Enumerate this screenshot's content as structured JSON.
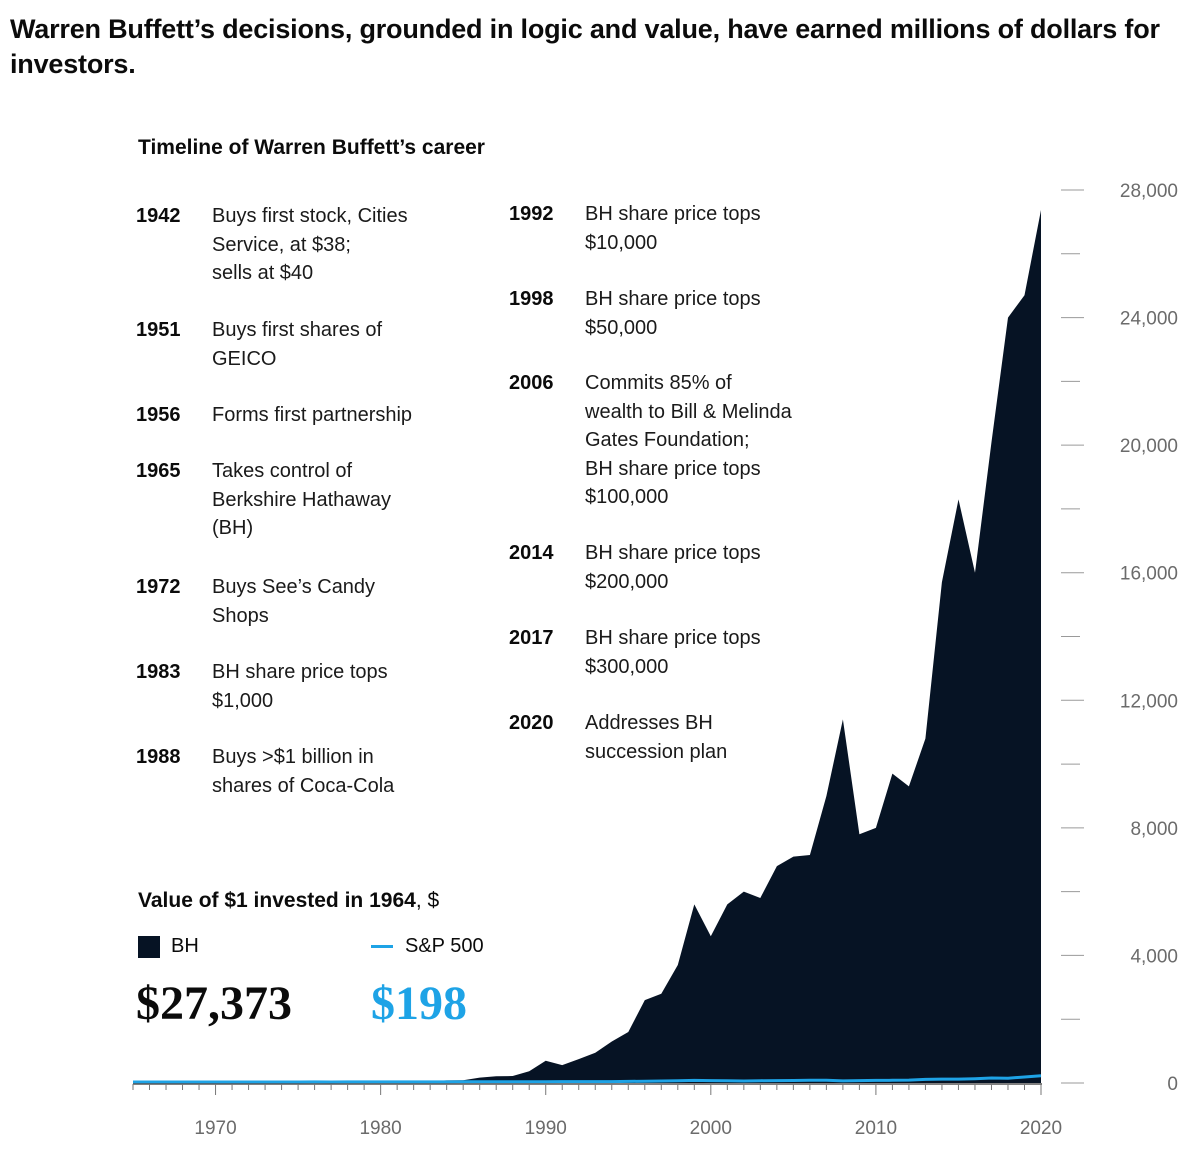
{
  "headline": "Warren Buffett’s decisions, grounded in logic and value, have earned millions of dollars for investors.",
  "timeline": {
    "title": "Timeline of Warren Buffett’s career",
    "left_events": [
      {
        "year": "1942",
        "text": "Buys first stock, Cities\nService, at $38;\nsells at $40"
      },
      {
        "year": "1951",
        "text": "Buys first shares of\nGEICO"
      },
      {
        "year": "1956",
        "text": "Forms first partnership"
      },
      {
        "year": "1965",
        "text": "Takes control of\nBerkshire Hathaway\n(BH)"
      },
      {
        "year": "1972",
        "text": "Buys See’s Candy\nShops"
      },
      {
        "year": "1983",
        "text": "BH share price tops\n$1,000"
      },
      {
        "year": "1988",
        "text": "Buys >$1 billion in\nshares of Coca-Cola"
      }
    ],
    "right_events": [
      {
        "year": "1992",
        "text": "BH share price tops\n$10,000"
      },
      {
        "year": "1998",
        "text": "BH share price tops\n$50,000"
      },
      {
        "year": "2006",
        "text": "Commits 85% of\nwealth to Bill & Melinda\nGates Foundation;\nBH share price tops\n$100,000"
      },
      {
        "year": "2014",
        "text": "BH share price tops\n$200,000"
      },
      {
        "year": "2017",
        "text": "BH share price tops\n$300,000"
      },
      {
        "year": "2020",
        "text": "Addresses BH\nsuccession plan"
      }
    ]
  },
  "value_panel": {
    "title_bold": "Value of $1 invested in 1964",
    "title_rest": ", $",
    "legend_bh": "BH",
    "legend_sp": "S&P 500",
    "bh_value": "$27,373",
    "sp_value": "$198"
  },
  "colors": {
    "bh": "#061324",
    "sp": "#1ea3e6",
    "axis": "#9a9a9a"
  },
  "chart_data": {
    "type": "area",
    "x": [
      1965,
      1966,
      1967,
      1968,
      1969,
      1970,
      1971,
      1972,
      1973,
      1974,
      1975,
      1976,
      1977,
      1978,
      1979,
      1980,
      1981,
      1982,
      1983,
      1984,
      1985,
      1986,
      1987,
      1988,
      1989,
      1990,
      1991,
      1992,
      1993,
      1994,
      1995,
      1996,
      1997,
      1998,
      1999,
      2000,
      2001,
      2002,
      2003,
      2004,
      2005,
      2006,
      2007,
      2008,
      2009,
      2010,
      2011,
      2012,
      2013,
      2014,
      2015,
      2016,
      2017,
      2018,
      2019,
      2020
    ],
    "series": [
      {
        "name": "BH",
        "values": [
          1,
          1.5,
          1.7,
          2,
          2.5,
          2.5,
          3,
          4,
          3.5,
          2.5,
          2,
          4,
          6,
          8,
          12,
          15,
          25,
          35,
          60,
          80,
          85,
          170,
          210,
          220,
          370,
          700,
          560,
          750,
          950,
          1300,
          1600,
          2600,
          2800,
          3700,
          5600,
          4600,
          5600,
          6000,
          5800,
          6800,
          7100,
          7150,
          9000,
          11400,
          7800,
          8000,
          9700,
          9300,
          10800,
          15700,
          18300,
          16000,
          20100,
          24000,
          24700,
          27373
        ]
      },
      {
        "name": "S&P 500",
        "values": [
          1,
          1,
          1.1,
          1.2,
          1.1,
          1.1,
          1.3,
          1.5,
          1.3,
          1,
          1.3,
          1.6,
          1.5,
          1.6,
          1.9,
          2.5,
          2.4,
          2.9,
          3.6,
          3.8,
          5,
          5.9,
          6.2,
          7.3,
          9.6,
          9.3,
          12,
          13,
          14,
          14,
          19,
          24,
          32,
          41,
          49,
          45,
          40,
          31,
          40,
          44,
          46,
          53,
          56,
          35,
          45,
          51,
          52,
          61,
          80,
          91,
          92,
          103,
          126,
          120,
          158,
          198
        ]
      }
    ],
    "title": "",
    "xlabel": "",
    "ylabel": "",
    "xlim": [
      1965,
      2020
    ],
    "ylim": [
      0,
      28000
    ],
    "xticks": [
      "1970",
      "1980",
      "1990",
      "2000",
      "2010",
      "2020"
    ],
    "yticks": [
      "0",
      "4,000",
      "8,000",
      "12,000",
      "16,000",
      "20,000",
      "24,000",
      "28,000"
    ],
    "grid": false,
    "y_axis_position": "right"
  }
}
